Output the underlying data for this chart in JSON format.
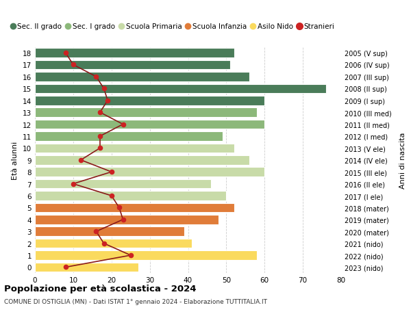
{
  "ages": [
    0,
    1,
    2,
    3,
    4,
    5,
    6,
    7,
    8,
    9,
    10,
    11,
    12,
    13,
    14,
    15,
    16,
    17,
    18
  ],
  "right_labels": [
    "2023 (nido)",
    "2022 (nido)",
    "2021 (nido)",
    "2020 (mater)",
    "2019 (mater)",
    "2018 (mater)",
    "2017 (I ele)",
    "2016 (II ele)",
    "2015 (III ele)",
    "2014 (IV ele)",
    "2013 (V ele)",
    "2012 (I med)",
    "2011 (II med)",
    "2010 (III med)",
    "2009 (I sup)",
    "2008 (II sup)",
    "2007 (III sup)",
    "2006 (IV sup)",
    "2005 (V sup)"
  ],
  "bar_values": [
    27,
    58,
    41,
    39,
    48,
    52,
    50,
    46,
    60,
    56,
    52,
    49,
    60,
    58,
    60,
    76,
    56,
    51,
    52
  ],
  "bar_colors": [
    "#FADA5E",
    "#FADA5E",
    "#FADA5E",
    "#E07C39",
    "#E07C39",
    "#E07C39",
    "#C8DBA8",
    "#C8DBA8",
    "#C8DBA8",
    "#C8DBA8",
    "#C8DBA8",
    "#8CB87A",
    "#8CB87A",
    "#8CB87A",
    "#4A7C59",
    "#4A7C59",
    "#4A7C59",
    "#4A7C59",
    "#4A7C59"
  ],
  "stranieri_values": [
    8,
    25,
    18,
    16,
    23,
    22,
    20,
    10,
    20,
    12,
    17,
    17,
    23,
    17,
    19,
    18,
    16,
    10,
    8
  ],
  "title": "Popolazione per età scolastica - 2024",
  "subtitle": "COMUNE DI OSTIGLIA (MN) - Dati ISTAT 1° gennaio 2024 - Elaborazione TUTTITALIA.IT",
  "ylabel": "Età alunni",
  "right_ylabel": "Anni di nascita",
  "xlim": [
    0,
    80
  ],
  "xticks": [
    0,
    10,
    20,
    30,
    40,
    50,
    60,
    70,
    80
  ],
  "legend_labels": [
    "Sec. II grado",
    "Sec. I grado",
    "Scuola Primaria",
    "Scuola Infanzia",
    "Asilo Nido",
    "Stranieri"
  ],
  "legend_colors": [
    "#4A7C59",
    "#8CB87A",
    "#C8DBA8",
    "#E07C39",
    "#FADA5E",
    "#CC2222"
  ],
  "bg_color": "#FFFFFF",
  "grid_color": "#CCCCCC",
  "bar_edge_color": "#FFFFFF",
  "stranieri_line_color": "#8B1A1A",
  "stranieri_dot_color": "#CC2222"
}
